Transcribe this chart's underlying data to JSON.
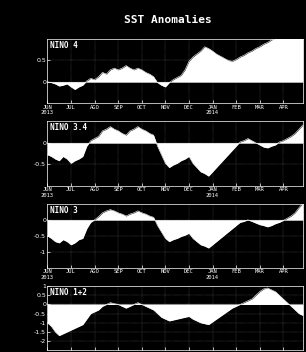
{
  "title": "SST Anomalies",
  "background_color": "#000000",
  "text_color": "#ffffff",
  "fill_color": "#ffffff",
  "panels": [
    {
      "label": "NINO 4",
      "ylim": [
        -0.5,
        1.0
      ],
      "yticks": [
        0,
        0.5
      ],
      "data": [
        0.0,
        -0.02,
        -0.05,
        -0.1,
        -0.08,
        -0.05,
        -0.12,
        -0.18,
        -0.12,
        -0.08,
        0.02,
        0.08,
        0.05,
        0.12,
        0.22,
        0.18,
        0.28,
        0.32,
        0.28,
        0.32,
        0.38,
        0.32,
        0.28,
        0.32,
        0.28,
        0.22,
        0.18,
        0.12,
        -0.02,
        -0.08,
        -0.12,
        -0.02,
        0.05,
        0.1,
        0.15,
        0.28,
        0.48,
        0.58,
        0.65,
        0.72,
        0.82,
        0.78,
        0.72,
        0.65,
        0.6,
        0.55,
        0.5,
        0.48,
        0.52,
        0.58,
        0.62,
        0.68,
        0.72,
        0.78,
        0.82,
        0.88,
        0.92,
        0.98,
        1.02,
        1.08,
        1.12,
        1.08,
        1.02,
        1.08,
        1.12,
        1.18
      ]
    },
    {
      "label": "NINO 3.4",
      "ylim": [
        -1.0,
        0.5
      ],
      "yticks": [
        -0.5,
        0
      ],
      "data": [
        -0.28,
        -0.32,
        -0.38,
        -0.42,
        -0.32,
        -0.38,
        -0.48,
        -0.42,
        -0.38,
        -0.32,
        -0.08,
        0.05,
        0.1,
        0.15,
        0.28,
        0.32,
        0.38,
        0.32,
        0.28,
        0.22,
        0.18,
        0.28,
        0.32,
        0.38,
        0.32,
        0.28,
        0.22,
        0.18,
        -0.08,
        -0.28,
        -0.48,
        -0.58,
        -0.52,
        -0.48,
        -0.42,
        -0.38,
        -0.32,
        -0.48,
        -0.58,
        -0.68,
        -0.72,
        -0.78,
        -0.68,
        -0.58,
        -0.48,
        -0.38,
        -0.28,
        -0.18,
        -0.08,
        0.02,
        0.05,
        0.1,
        0.05,
        0.0,
        -0.05,
        -0.1,
        -0.12,
        -0.08,
        -0.05,
        0.02,
        0.05,
        0.1,
        0.15,
        0.22,
        0.32,
        0.42
      ]
    },
    {
      "label": "NINO 3",
      "ylim": [
        -1.5,
        0.5
      ],
      "yticks": [
        -1.0,
        -0.5,
        0
      ],
      "data": [
        -0.5,
        -0.58,
        -0.68,
        -0.72,
        -0.62,
        -0.68,
        -0.78,
        -0.72,
        -0.62,
        -0.58,
        -0.28,
        -0.08,
        0.0,
        0.1,
        0.22,
        0.28,
        0.32,
        0.28,
        0.22,
        0.18,
        0.12,
        0.18,
        0.22,
        0.28,
        0.22,
        0.18,
        0.12,
        0.08,
        -0.18,
        -0.38,
        -0.58,
        -0.68,
        -0.62,
        -0.58,
        -0.52,
        -0.48,
        -0.42,
        -0.58,
        -0.68,
        -0.78,
        -0.82,
        -0.88,
        -0.78,
        -0.68,
        -0.58,
        -0.48,
        -0.38,
        -0.28,
        -0.18,
        -0.08,
        -0.05,
        0.0,
        -0.05,
        -0.1,
        -0.15,
        -0.18,
        -0.22,
        -0.18,
        -0.12,
        -0.08,
        -0.02,
        0.05,
        0.12,
        0.22,
        0.38,
        0.52
      ]
    },
    {
      "label": "NINO 1+2",
      "ylim": [
        -2.5,
        1.0
      ],
      "yticks": [
        -2,
        -1.5,
        -1,
        -0.5,
        0,
        0.5,
        1
      ],
      "data": [
        -1.0,
        -1.2,
        -1.5,
        -1.7,
        -1.6,
        -1.5,
        -1.4,
        -1.3,
        -1.2,
        -1.1,
        -0.8,
        -0.5,
        -0.4,
        -0.3,
        -0.1,
        0.0,
        0.1,
        0.05,
        0.0,
        -0.1,
        -0.2,
        -0.1,
        0.0,
        0.1,
        0.0,
        -0.1,
        -0.2,
        -0.3,
        -0.5,
        -0.7,
        -0.8,
        -0.9,
        -0.85,
        -0.8,
        -0.75,
        -0.7,
        -0.65,
        -0.8,
        -0.9,
        -1.0,
        -1.05,
        -1.1,
        -0.95,
        -0.8,
        -0.65,
        -0.5,
        -0.35,
        -0.2,
        -0.1,
        0.0,
        0.1,
        0.2,
        0.3,
        0.5,
        0.7,
        0.85,
        0.9,
        0.8,
        0.7,
        0.5,
        0.3,
        0.1,
        -0.1,
        -0.3,
        -0.5,
        -0.6
      ]
    }
  ],
  "x_months": [
    "JUN\n2013",
    "JUL",
    "AGO",
    "SEP",
    "OCT",
    "NOV",
    "DEC",
    "JAN\n2014",
    "FEB",
    "MAR",
    "APR"
  ],
  "month_positions": [
    0,
    6,
    12,
    18,
    24,
    30,
    36,
    42,
    48,
    54,
    60
  ],
  "n_points": 66
}
